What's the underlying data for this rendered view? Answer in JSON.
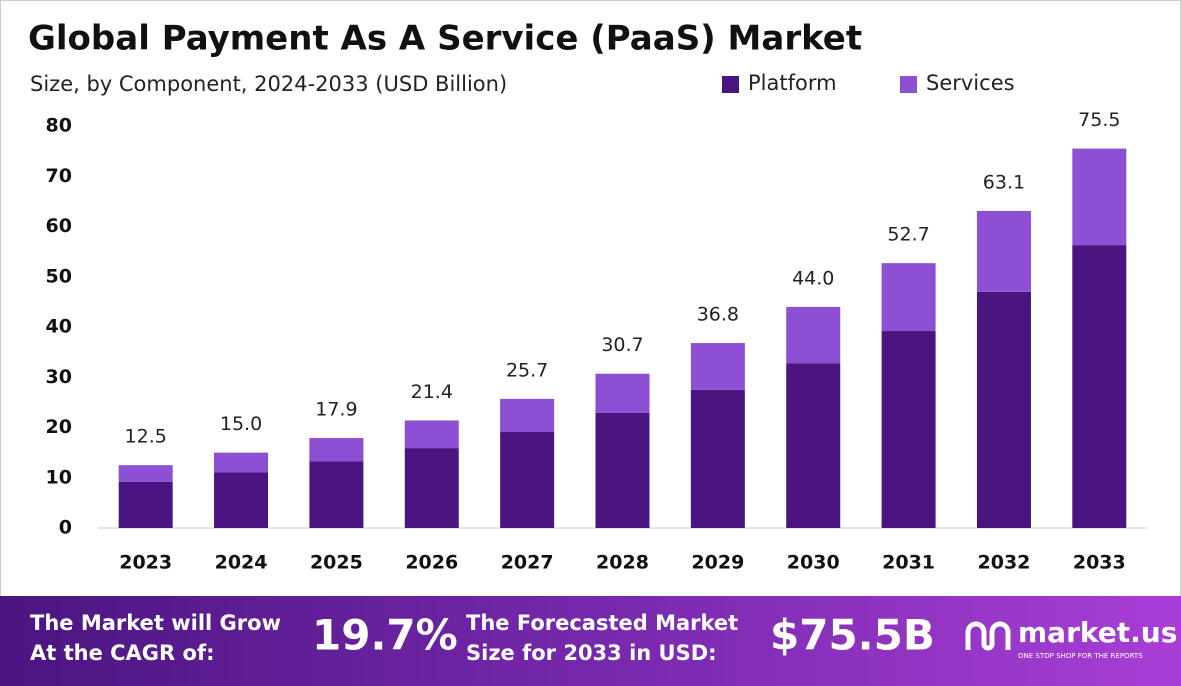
{
  "chart_data": {
    "type": "stacked_bar",
    "title": "Global Payment As A Service (PaaS) Market",
    "subtitle": "Size, by Component, 2024-2033 (USD Billion)",
    "categories": [
      "2023",
      "2024",
      "2025",
      "2026",
      "2027",
      "2028",
      "2029",
      "2030",
      "2031",
      "2032",
      "2033"
    ],
    "series": [
      {
        "name": "Platform",
        "color": "#4b1581",
        "values": [
          9.2,
          11.1,
          13.3,
          15.9,
          19.1,
          22.9,
          27.5,
          32.8,
          39.2,
          47.0,
          56.3
        ]
      },
      {
        "name": "Services",
        "color": "#8d4fd3",
        "values": [
          3.3,
          3.9,
          4.6,
          5.5,
          6.6,
          7.8,
          9.3,
          11.2,
          13.5,
          16.1,
          19.2
        ]
      }
    ],
    "total_labels": [
      "12.5",
      "15.0",
      "17.9",
      "21.4",
      "25.7",
      "30.7",
      "36.8",
      "44.0",
      "52.7",
      "63.1",
      "75.5"
    ],
    "ylim": [
      0,
      80
    ],
    "yticks": [
      0,
      10,
      20,
      30,
      40,
      50,
      60,
      70,
      80
    ],
    "grid": false
  },
  "footer": {
    "cagr_line1": "The Market will Grow",
    "cagr_line2": "At the CAGR of:",
    "cagr": "19.7%",
    "forecast_line1": "The Forecasted Market",
    "forecast_line2": "Size for 2033 in USD:",
    "forecast": "$75.5B",
    "brand": "market.us",
    "tagline": "ONE STOP SHOP FOR THE REPORTS"
  }
}
